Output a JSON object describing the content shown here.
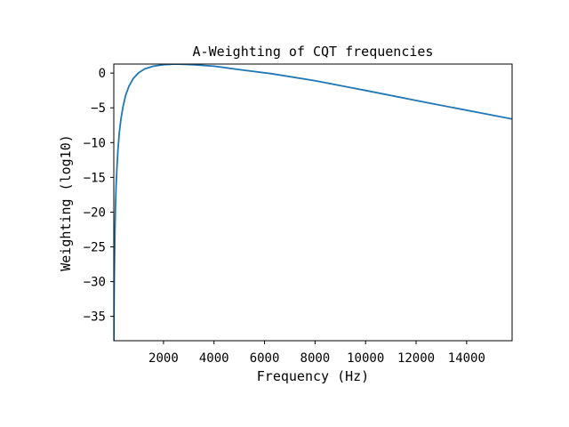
{
  "chart_data": {
    "type": "line",
    "title": "A-Weighting of CQT frequencies",
    "xlabel": "Frequency (Hz)",
    "ylabel": "Weighting (log10)",
    "xlim": [
      32.7,
      15800
    ],
    "ylim": [
      -38.5,
      1.3
    ],
    "xticks": [
      2000,
      4000,
      6000,
      8000,
      10000,
      12000,
      14000
    ],
    "xtick_labels": [
      "2000",
      "4000",
      "6000",
      "8000",
      "10000",
      "12000",
      "14000"
    ],
    "yticks": [
      0,
      -5,
      -10,
      -15,
      -20,
      -25,
      -30,
      -35
    ],
    "ytick_labels": [
      "0",
      "−5",
      "−10",
      "−15",
      "−20",
      "−25",
      "−30",
      "−35"
    ],
    "grid": false,
    "series": [
      {
        "color": "#1f77b4",
        "x": [
          32.7,
          40,
          50,
          65,
          80,
          100,
          125,
          160,
          200,
          250,
          315,
          400,
          500,
          630,
          800,
          1000,
          1250,
          1600,
          2000,
          2500,
          3150,
          4000,
          5000,
          6300,
          8000,
          10000,
          12500,
          15800
        ],
        "y": [
          -39.5,
          -34.6,
          -30.2,
          -26.2,
          -22.5,
          -19.1,
          -16.1,
          -13.4,
          -10.9,
          -8.6,
          -6.6,
          -4.8,
          -3.2,
          -1.9,
          -0.8,
          0.0,
          0.6,
          1.0,
          1.2,
          1.3,
          1.2,
          1.0,
          0.5,
          -0.1,
          -1.1,
          -2.5,
          -4.3,
          -6.6
        ]
      }
    ]
  }
}
